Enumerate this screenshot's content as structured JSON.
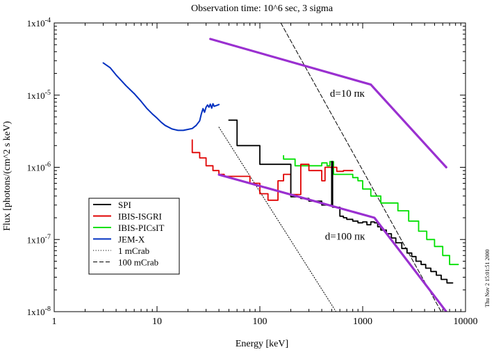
{
  "chart_data": {
    "type": "line",
    "title": "Observation time: 10^6 sec, 3 sigma",
    "xlabel": "Energy [keV]",
    "ylabel": "Flux [photons/(cm^2 s keV)",
    "x_scale": "log",
    "y_scale": "log",
    "xlim": [
      1,
      10000
    ],
    "ylim": [
      1e-08,
      0.0001
    ],
    "x_ticks": [
      {
        "value": 1,
        "label": "1"
      },
      {
        "value": 10,
        "label": "10"
      },
      {
        "value": 100,
        "label": "100"
      },
      {
        "value": 1000,
        "label": "1000"
      },
      {
        "value": 10000,
        "label": "10000"
      }
    ],
    "y_ticks": [
      {
        "value": 1e-08,
        "label": "1x10^-8",
        "mantissa": "1x10",
        "exp": "-8"
      },
      {
        "value": 1e-07,
        "label": "1x10^-7",
        "mantissa": "1x10",
        "exp": "-7"
      },
      {
        "value": 1e-06,
        "label": "1x10^-6",
        "mantissa": "1x10",
        "exp": "-6"
      },
      {
        "value": 1e-05,
        "label": "1x10^-5",
        "mantissa": "1x10",
        "exp": "-5"
      },
      {
        "value": 0.0001,
        "label": "1x10^-4",
        "mantissa": "1x10",
        "exp": "-4"
      }
    ],
    "grid": false,
    "legend_position": "bottom-left",
    "legend": [
      {
        "name": "SPI",
        "color": "#000000",
        "dash": "solid"
      },
      {
        "name": "IBIS-ISGRI",
        "color": "#e00000",
        "dash": "solid"
      },
      {
        "name": "IBIS-PICsIT",
        "color": "#00e000",
        "dash": "solid"
      },
      {
        "name": "JEM-X",
        "color": "#0030c0",
        "dash": "solid"
      },
      {
        "name": "1 mCrab",
        "color": "#000000",
        "dash": "dotted"
      },
      {
        "name": "100 mCrab",
        "color": "#000000",
        "dash": "dashed"
      }
    ],
    "series": [
      {
        "name": "SPI",
        "color": "#000000",
        "style": "step",
        "points": [
          [
            50,
            4.5e-06
          ],
          [
            60,
            4.5e-06
          ],
          [
            60,
            2e-06
          ],
          [
            100,
            2e-06
          ],
          [
            100,
            1.1e-06
          ],
          [
            200,
            1.1e-06
          ],
          [
            200,
            3.9e-07
          ],
          [
            250,
            3.9e-07
          ],
          [
            250,
            3.7e-07
          ],
          [
            300,
            3.7e-07
          ],
          [
            300,
            3.4e-07
          ],
          [
            400,
            3.4e-07
          ],
          [
            400,
            3e-07
          ],
          [
            500,
            3e-07
          ],
          [
            500,
            1.2e-06
          ],
          [
            510,
            1.2e-06
          ],
          [
            510,
            2.8e-07
          ],
          [
            600,
            2.8e-07
          ],
          [
            600,
            2.1e-07
          ],
          [
            650,
            2.1e-07
          ],
          [
            650,
            2e-07
          ],
          [
            700,
            2e-07
          ],
          [
            700,
            1.9e-07
          ],
          [
            800,
            1.9e-07
          ],
          [
            800,
            1.8e-07
          ],
          [
            900,
            1.8e-07
          ],
          [
            900,
            1.7e-07
          ],
          [
            1000,
            1.7e-07
          ],
          [
            1000,
            1.75e-07
          ],
          [
            1100,
            1.75e-07
          ],
          [
            1100,
            1.6e-07
          ],
          [
            1200,
            1.6e-07
          ],
          [
            1200,
            1.75e-07
          ],
          [
            1300,
            1.75e-07
          ],
          [
            1300,
            1.7e-07
          ],
          [
            1400,
            1.7e-07
          ],
          [
            1400,
            1.5e-07
          ],
          [
            1500,
            1.5e-07
          ],
          [
            1500,
            1.35e-07
          ],
          [
            1700,
            1.35e-07
          ],
          [
            1700,
            1.2e-07
          ],
          [
            1900,
            1.2e-07
          ],
          [
            1900,
            1.05e-07
          ],
          [
            2100,
            1.05e-07
          ],
          [
            2100,
            9e-08
          ],
          [
            2400,
            9e-08
          ],
          [
            2400,
            7.5e-08
          ],
          [
            2700,
            7.5e-08
          ],
          [
            2700,
            6.5e-08
          ],
          [
            3000,
            6.5e-08
          ],
          [
            3000,
            5.8e-08
          ],
          [
            3300,
            5.8e-08
          ],
          [
            3300,
            5e-08
          ],
          [
            3700,
            5e-08
          ],
          [
            3700,
            4.5e-08
          ],
          [
            4100,
            4.5e-08
          ],
          [
            4100,
            4e-08
          ],
          [
            4600,
            4e-08
          ],
          [
            4600,
            3.6e-08
          ],
          [
            5200,
            3.6e-08
          ],
          [
            5200,
            3.2e-08
          ],
          [
            5800,
            3.2e-08
          ],
          [
            5800,
            2.8e-08
          ],
          [
            6600,
            2.8e-08
          ],
          [
            6600,
            2.5e-08
          ],
          [
            7500,
            2.5e-08
          ]
        ]
      },
      {
        "name": "IBIS-ISGRI",
        "color": "#e00000",
        "style": "step",
        "points": [
          [
            22,
            2.4e-06
          ],
          [
            22,
            1.6e-06
          ],
          [
            26,
            1.6e-06
          ],
          [
            26,
            1.35e-06
          ],
          [
            30,
            1.35e-06
          ],
          [
            30,
            1.05e-06
          ],
          [
            35,
            1.05e-06
          ],
          [
            35,
            9e-07
          ],
          [
            40,
            9e-07
          ],
          [
            40,
            8e-07
          ],
          [
            45,
            8e-07
          ],
          [
            45,
            7.5e-07
          ],
          [
            80,
            7.5e-07
          ],
          [
            80,
            6e-07
          ],
          [
            100,
            6e-07
          ],
          [
            100,
            4.3e-07
          ],
          [
            120,
            4.3e-07
          ],
          [
            120,
            3.5e-07
          ],
          [
            150,
            3.5e-07
          ],
          [
            150,
            6.5e-07
          ],
          [
            170,
            6.5e-07
          ],
          [
            170,
            8e-07
          ],
          [
            200,
            8e-07
          ],
          [
            200,
            4.2e-07
          ],
          [
            250,
            4.2e-07
          ],
          [
            250,
            1.1e-06
          ],
          [
            300,
            1.1e-06
          ],
          [
            300,
            9e-07
          ],
          [
            400,
            9e-07
          ],
          [
            400,
            6.5e-07
          ],
          [
            430,
            6.5e-07
          ],
          [
            430,
            1e-06
          ],
          [
            560,
            1e-06
          ],
          [
            560,
            8.8e-07
          ],
          [
            650,
            8.8e-07
          ],
          [
            650,
            9e-07
          ],
          [
            800,
            9e-07
          ]
        ]
      },
      {
        "name": "IBIS-PICsIT",
        "color": "#00e000",
        "style": "step",
        "points": [
          [
            170,
            1.45e-06
          ],
          [
            170,
            1.3e-06
          ],
          [
            220,
            1.3e-06
          ],
          [
            220,
            1.05e-06
          ],
          [
            400,
            1.05e-06
          ],
          [
            400,
            1.15e-06
          ],
          [
            450,
            1.15e-06
          ],
          [
            450,
            1.05e-06
          ],
          [
            480,
            1.05e-06
          ],
          [
            480,
            1.2e-06
          ],
          [
            520,
            1.2e-06
          ],
          [
            520,
            8e-07
          ],
          [
            800,
            8e-07
          ],
          [
            800,
            7.2e-07
          ],
          [
            900,
            7.2e-07
          ],
          [
            900,
            6.5e-07
          ],
          [
            1000,
            6.5e-07
          ],
          [
            1000,
            5e-07
          ],
          [
            1200,
            5e-07
          ],
          [
            1200,
            4e-07
          ],
          [
            1500,
            4e-07
          ],
          [
            1500,
            3.2e-07
          ],
          [
            2200,
            3.2e-07
          ],
          [
            2200,
            2.5e-07
          ],
          [
            2800,
            2.5e-07
          ],
          [
            2800,
            1.8e-07
          ],
          [
            3500,
            1.8e-07
          ],
          [
            3500,
            1.3e-07
          ],
          [
            4200,
            1.3e-07
          ],
          [
            4200,
            1e-07
          ],
          [
            5000,
            1e-07
          ],
          [
            5000,
            8e-08
          ],
          [
            6000,
            8e-08
          ],
          [
            6000,
            6e-08
          ],
          [
            7000,
            6e-08
          ],
          [
            7000,
            4.5e-08
          ],
          [
            8500,
            4.5e-08
          ]
        ]
      },
      {
        "name": "JEM-X",
        "color": "#0030c0",
        "style": "line",
        "points": [
          [
            3,
            2.8e-05
          ],
          [
            3.5,
            2.4e-05
          ],
          [
            4,
            1.9e-05
          ],
          [
            5,
            1.35e-05
          ],
          [
            6,
            1.05e-05
          ],
          [
            7,
            8.2e-06
          ],
          [
            8,
            6.5e-06
          ],
          [
            9,
            5.5e-06
          ],
          [
            10,
            4.8e-06
          ],
          [
            11,
            4.2e-06
          ],
          [
            12,
            3.8e-06
          ],
          [
            14,
            3.4e-06
          ],
          [
            16,
            3.25e-06
          ],
          [
            18,
            3.25e-06
          ],
          [
            20,
            3.35e-06
          ],
          [
            22,
            3.45e-06
          ],
          [
            24,
            3.8e-06
          ],
          [
            26,
            4.4e-06
          ],
          [
            27,
            5.5e-06
          ],
          [
            28,
            6.5e-06
          ],
          [
            29,
            5.8e-06
          ],
          [
            30,
            6.8e-06
          ],
          [
            31,
            7.3e-06
          ],
          [
            32,
            6.8e-06
          ],
          [
            33,
            7.5e-06
          ],
          [
            34,
            6.6e-06
          ],
          [
            35,
            7.6e-06
          ],
          [
            36,
            7e-06
          ],
          [
            38,
            7.2e-06
          ],
          [
            40,
            7.4e-06
          ]
        ]
      },
      {
        "name": "1 mCrab",
        "color": "#000000",
        "style": "dotted",
        "points": [
          [
            40,
            3.6e-06
          ],
          [
            550,
            1e-08
          ]
        ]
      },
      {
        "name": "100 mCrab",
        "color": "#000000",
        "style": "dashed",
        "points": [
          [
            160,
            0.0001
          ],
          [
            5800,
            1e-08
          ]
        ]
      },
      {
        "name": "d=10 пк",
        "color": "#9a30d0",
        "style": "thick",
        "points": [
          [
            33,
            6e-05
          ],
          [
            1200,
            1.4e-05
          ],
          [
            6500,
            1e-06
          ]
        ]
      },
      {
        "name": "d=100 пк",
        "color": "#9a30d0",
        "style": "thick",
        "points": [
          [
            40,
            7.9e-07
          ],
          [
            1300,
            2e-07
          ],
          [
            6500,
            1e-08
          ]
        ]
      }
    ],
    "annotations": [
      {
        "text": "d=10 пк",
        "x": 480,
        "y": 9.5e-06
      },
      {
        "text": "d=100 пк",
        "x": 430,
        "y": 1e-07
      }
    ],
    "side_note": "Thu Nov  2 15:01:51 2000"
  }
}
